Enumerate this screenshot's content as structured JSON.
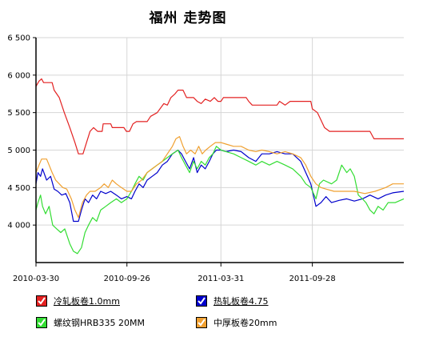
{
  "chart_data": {
    "type": "line",
    "title": "福州 走势图",
    "xlabel": "",
    "ylabel": "",
    "ylim": [
      3500,
      6500
    ],
    "xlim": [
      "2010-03-30",
      "2012-03-27"
    ],
    "y_ticks": [
      "6 500",
      "6 000",
      "5 500",
      "5 000",
      "4 500",
      "4 000"
    ],
    "y_tick_values": [
      6500,
      6000,
      5500,
      5000,
      4500,
      4000
    ],
    "x_ticks": [
      "2010-03-30",
      "2010-09-26",
      "2011-03-31",
      "2011-09-28"
    ],
    "grid": true,
    "legend_position": "bottom",
    "series": [
      {
        "name": "冷轧板卷1.0mm",
        "color": "#e32121",
        "points": [
          [
            "2010-03-30",
            5850
          ],
          [
            "2010-04-05",
            5920
          ],
          [
            "2010-04-10",
            5950
          ],
          [
            "2010-04-14",
            5900
          ],
          [
            "2010-05-01",
            5900
          ],
          [
            "2010-05-05",
            5800
          ],
          [
            "2010-05-15",
            5700
          ],
          [
            "2010-05-25",
            5500
          ],
          [
            "2010-06-05",
            5300
          ],
          [
            "2010-06-15",
            5100
          ],
          [
            "2010-06-22",
            4950
          ],
          [
            "2010-07-01",
            4950
          ],
          [
            "2010-07-08",
            5100
          ],
          [
            "2010-07-15",
            5250
          ],
          [
            "2010-07-22",
            5300
          ],
          [
            "2010-07-30",
            5250
          ],
          [
            "2010-08-08",
            5250
          ],
          [
            "2010-08-10",
            5350
          ],
          [
            "2010-08-25",
            5350
          ],
          [
            "2010-08-28",
            5300
          ],
          [
            "2010-09-20",
            5300
          ],
          [
            "2010-09-25",
            5250
          ],
          [
            "2010-10-01",
            5250
          ],
          [
            "2010-10-08",
            5350
          ],
          [
            "2010-10-15",
            5380
          ],
          [
            "2010-11-05",
            5380
          ],
          [
            "2010-11-12",
            5450
          ],
          [
            "2010-11-25",
            5500
          ],
          [
            "2010-12-08",
            5620
          ],
          [
            "2010-12-15",
            5600
          ],
          [
            "2010-12-22",
            5700
          ],
          [
            "2010-12-30",
            5750
          ],
          [
            "2011-01-05",
            5800
          ],
          [
            "2011-01-15",
            5800
          ],
          [
            "2011-01-22",
            5700
          ],
          [
            "2011-02-05",
            5700
          ],
          [
            "2011-02-12",
            5650
          ],
          [
            "2011-02-20",
            5620
          ],
          [
            "2011-02-28",
            5680
          ],
          [
            "2011-03-10",
            5650
          ],
          [
            "2011-03-18",
            5700
          ],
          [
            "2011-03-25",
            5650
          ],
          [
            "2011-03-31",
            5650
          ],
          [
            "2011-04-05",
            5700
          ],
          [
            "2011-05-20",
            5700
          ],
          [
            "2011-05-25",
            5650
          ],
          [
            "2011-06-01",
            5600
          ],
          [
            "2011-07-20",
            5600
          ],
          [
            "2011-07-25",
            5650
          ],
          [
            "2011-08-05",
            5600
          ],
          [
            "2011-08-15",
            5650
          ],
          [
            "2011-09-25",
            5650
          ],
          [
            "2011-09-28",
            5550
          ],
          [
            "2011-10-08",
            5500
          ],
          [
            "2011-10-15",
            5400
          ],
          [
            "2011-10-22",
            5300
          ],
          [
            "2011-11-01",
            5250
          ],
          [
            "2012-01-20",
            5250
          ],
          [
            "2012-01-28",
            5150
          ],
          [
            "2012-03-27",
            5150
          ]
        ]
      },
      {
        "name": "热轧板卷4.75",
        "color": "#0000cc",
        "points": [
          [
            "2010-03-30",
            4550
          ],
          [
            "2010-04-03",
            4700
          ],
          [
            "2010-04-08",
            4650
          ],
          [
            "2010-04-12",
            4750
          ],
          [
            "2010-04-20",
            4600
          ],
          [
            "2010-04-28",
            4650
          ],
          [
            "2010-05-05",
            4480
          ],
          [
            "2010-05-12",
            4450
          ],
          [
            "2010-05-20",
            4400
          ],
          [
            "2010-05-28",
            4420
          ],
          [
            "2010-06-05",
            4300
          ],
          [
            "2010-06-12",
            4050
          ],
          [
            "2010-06-22",
            4050
          ],
          [
            "2010-06-28",
            4200
          ],
          [
            "2010-07-05",
            4350
          ],
          [
            "2010-07-12",
            4300
          ],
          [
            "2010-07-20",
            4400
          ],
          [
            "2010-07-28",
            4350
          ],
          [
            "2010-08-05",
            4450
          ],
          [
            "2010-08-15",
            4420
          ],
          [
            "2010-08-25",
            4450
          ],
          [
            "2010-09-05",
            4400
          ],
          [
            "2010-09-15",
            4350
          ],
          [
            "2010-09-26",
            4380
          ],
          [
            "2010-10-05",
            4350
          ],
          [
            "2010-10-12",
            4450
          ],
          [
            "2010-10-20",
            4550
          ],
          [
            "2010-10-28",
            4500
          ],
          [
            "2010-11-05",
            4600
          ],
          [
            "2010-11-15",
            4650
          ],
          [
            "2010-11-25",
            4700
          ],
          [
            "2010-12-05",
            4800
          ],
          [
            "2010-12-15",
            4850
          ],
          [
            "2010-12-25",
            4950
          ],
          [
            "2011-01-05",
            5000
          ],
          [
            "2011-01-12",
            4950
          ],
          [
            "2011-01-20",
            4850
          ],
          [
            "2011-01-28",
            4750
          ],
          [
            "2011-02-05",
            4900
          ],
          [
            "2011-02-12",
            4700
          ],
          [
            "2011-02-20",
            4800
          ],
          [
            "2011-02-28",
            4750
          ],
          [
            "2011-03-08",
            4850
          ],
          [
            "2011-03-15",
            4950
          ],
          [
            "2011-03-22",
            5000
          ],
          [
            "2011-03-31",
            5000
          ],
          [
            "2011-04-10",
            4980
          ],
          [
            "2011-04-25",
            5000
          ],
          [
            "2011-05-10",
            4980
          ],
          [
            "2011-05-25",
            4900
          ],
          [
            "2011-06-08",
            4850
          ],
          [
            "2011-06-20",
            4950
          ],
          [
            "2011-07-05",
            4950
          ],
          [
            "2011-07-20",
            4980
          ],
          [
            "2011-08-05",
            4950
          ],
          [
            "2011-08-20",
            4950
          ],
          [
            "2011-09-05",
            4850
          ],
          [
            "2011-09-15",
            4700
          ],
          [
            "2011-09-25",
            4550
          ],
          [
            "2011-10-05",
            4250
          ],
          [
            "2011-10-15",
            4300
          ],
          [
            "2011-10-25",
            4380
          ],
          [
            "2011-11-05",
            4300
          ],
          [
            "2011-11-20",
            4330
          ],
          [
            "2011-12-05",
            4350
          ],
          [
            "2011-12-20",
            4320
          ],
          [
            "2012-01-05",
            4350
          ],
          [
            "2012-01-20",
            4400
          ],
          [
            "2012-02-05",
            4350
          ],
          [
            "2012-02-20",
            4400
          ],
          [
            "2012-03-05",
            4430
          ],
          [
            "2012-03-27",
            4450
          ]
        ]
      },
      {
        "name": "螺纹钢HRB335 20MM",
        "color": "#33dd33",
        "points": [
          [
            "2010-03-30",
            4200
          ],
          [
            "2010-04-03",
            4300
          ],
          [
            "2010-04-08",
            4400
          ],
          [
            "2010-04-12",
            4250
          ],
          [
            "2010-04-18",
            4150
          ],
          [
            "2010-04-25",
            4250
          ],
          [
            "2010-05-02",
            4000
          ],
          [
            "2010-05-10",
            3950
          ],
          [
            "2010-05-18",
            3900
          ],
          [
            "2010-05-26",
            3950
          ],
          [
            "2010-06-05",
            3750
          ],
          [
            "2010-06-12",
            3650
          ],
          [
            "2010-06-20",
            3620
          ],
          [
            "2010-06-28",
            3700
          ],
          [
            "2010-07-05",
            3900
          ],
          [
            "2010-07-12",
            4000
          ],
          [
            "2010-07-20",
            4100
          ],
          [
            "2010-07-28",
            4050
          ],
          [
            "2010-08-05",
            4200
          ],
          [
            "2010-08-15",
            4250
          ],
          [
            "2010-08-25",
            4300
          ],
          [
            "2010-09-05",
            4350
          ],
          [
            "2010-09-15",
            4300
          ],
          [
            "2010-09-26",
            4350
          ],
          [
            "2010-10-05",
            4450
          ],
          [
            "2010-10-12",
            4550
          ],
          [
            "2010-10-20",
            4650
          ],
          [
            "2010-10-28",
            4600
          ],
          [
            "2010-11-05",
            4700
          ],
          [
            "2010-11-15",
            4750
          ],
          [
            "2010-11-25",
            4800
          ],
          [
            "2010-12-05",
            4850
          ],
          [
            "2010-12-15",
            4900
          ],
          [
            "2010-12-25",
            4950
          ],
          [
            "2011-01-05",
            5000
          ],
          [
            "2011-01-12",
            4900
          ],
          [
            "2011-01-20",
            4800
          ],
          [
            "2011-01-28",
            4700
          ],
          [
            "2011-02-05",
            4850
          ],
          [
            "2011-02-12",
            4750
          ],
          [
            "2011-02-20",
            4850
          ],
          [
            "2011-02-28",
            4800
          ],
          [
            "2011-03-08",
            4900
          ],
          [
            "2011-03-15",
            4950
          ],
          [
            "2011-03-22",
            5050
          ],
          [
            "2011-03-31",
            5000
          ],
          [
            "2011-04-10",
            4980
          ],
          [
            "2011-04-25",
            4950
          ],
          [
            "2011-05-10",
            4900
          ],
          [
            "2011-05-25",
            4850
          ],
          [
            "2011-06-08",
            4800
          ],
          [
            "2011-06-20",
            4850
          ],
          [
            "2011-07-05",
            4800
          ],
          [
            "2011-07-20",
            4850
          ],
          [
            "2011-08-05",
            4800
          ],
          [
            "2011-08-20",
            4750
          ],
          [
            "2011-09-05",
            4650
          ],
          [
            "2011-09-15",
            4550
          ],
          [
            "2011-09-25",
            4500
          ],
          [
            "2011-10-05",
            4350
          ],
          [
            "2011-10-12",
            4550
          ],
          [
            "2011-10-20",
            4600
          ],
          [
            "2011-11-05",
            4550
          ],
          [
            "2011-11-15",
            4600
          ],
          [
            "2011-11-25",
            4800
          ],
          [
            "2011-12-05",
            4700
          ],
          [
            "2011-12-12",
            4750
          ],
          [
            "2011-12-20",
            4650
          ],
          [
            "2011-12-28",
            4400
          ],
          [
            "2012-01-05",
            4350
          ],
          [
            "2012-01-12",
            4300
          ],
          [
            "2012-01-20",
            4200
          ],
          [
            "2012-01-28",
            4150
          ],
          [
            "2012-02-05",
            4250
          ],
          [
            "2012-02-15",
            4200
          ],
          [
            "2012-02-25",
            4300
          ],
          [
            "2012-03-10",
            4300
          ],
          [
            "2012-03-27",
            4350
          ]
        ]
      },
      {
        "name": "中厚板卷20mm",
        "color": "#f0a030",
        "points": [
          [
            "2010-03-30",
            4700
          ],
          [
            "2010-04-05",
            4800
          ],
          [
            "2010-04-10",
            4880
          ],
          [
            "2010-04-20",
            4880
          ],
          [
            "2010-04-25",
            4800
          ],
          [
            "2010-05-01",
            4700
          ],
          [
            "2010-05-08",
            4600
          ],
          [
            "2010-05-15",
            4550
          ],
          [
            "2010-05-22",
            4500
          ],
          [
            "2010-05-30",
            4480
          ],
          [
            "2010-06-08",
            4350
          ],
          [
            "2010-06-15",
            4200
          ],
          [
            "2010-06-22",
            4100
          ],
          [
            "2010-06-30",
            4300
          ],
          [
            "2010-07-08",
            4400
          ],
          [
            "2010-07-15",
            4450
          ],
          [
            "2010-07-25",
            4450
          ],
          [
            "2010-08-05",
            4500
          ],
          [
            "2010-08-12",
            4550
          ],
          [
            "2010-08-20",
            4500
          ],
          [
            "2010-08-28",
            4600
          ],
          [
            "2010-09-05",
            4550
          ],
          [
            "2010-09-15",
            4500
          ],
          [
            "2010-09-26",
            4450
          ],
          [
            "2010-10-05",
            4450
          ],
          [
            "2010-10-15",
            4550
          ],
          [
            "2010-10-25",
            4600
          ],
          [
            "2010-11-05",
            4700
          ],
          [
            "2010-11-15",
            4750
          ],
          [
            "2010-11-25",
            4800
          ],
          [
            "2010-12-05",
            4850
          ],
          [
            "2010-12-15",
            4950
          ],
          [
            "2010-12-25",
            5050
          ],
          [
            "2011-01-01",
            5150
          ],
          [
            "2011-01-08",
            5180
          ],
          [
            "2011-01-15",
            5050
          ],
          [
            "2011-01-22",
            4950
          ],
          [
            "2011-01-30",
            5000
          ],
          [
            "2011-02-08",
            4950
          ],
          [
            "2011-02-15",
            5050
          ],
          [
            "2011-02-22",
            4950
          ],
          [
            "2011-03-01",
            5000
          ],
          [
            "2011-03-10",
            5050
          ],
          [
            "2011-03-20",
            5100
          ],
          [
            "2011-03-31",
            5100
          ],
          [
            "2011-04-10",
            5080
          ],
          [
            "2011-04-25",
            5050
          ],
          [
            "2011-05-10",
            5050
          ],
          [
            "2011-05-25",
            5000
          ],
          [
            "2011-06-08",
            4980
          ],
          [
            "2011-06-20",
            5000
          ],
          [
            "2011-07-05",
            4980
          ],
          [
            "2011-07-20",
            4950
          ],
          [
            "2011-08-05",
            4980
          ],
          [
            "2011-08-20",
            4950
          ],
          [
            "2011-09-05",
            4900
          ],
          [
            "2011-09-15",
            4800
          ],
          [
            "2011-09-25",
            4650
          ],
          [
            "2011-10-05",
            4550
          ],
          [
            "2011-10-15",
            4500
          ],
          [
            "2011-10-25",
            4480
          ],
          [
            "2011-11-10",
            4450
          ],
          [
            "2011-12-01",
            4450
          ],
          [
            "2011-12-20",
            4450
          ],
          [
            "2012-01-10",
            4420
          ],
          [
            "2012-01-30",
            4450
          ],
          [
            "2012-02-20",
            4500
          ],
          [
            "2012-03-05",
            4550
          ],
          [
            "2012-03-27",
            4550
          ]
        ]
      }
    ]
  }
}
